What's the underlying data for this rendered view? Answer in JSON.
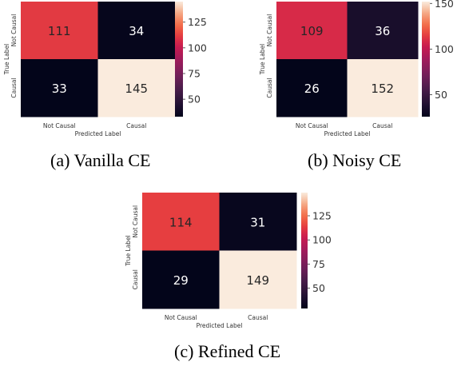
{
  "chart_data": [
    {
      "type": "heatmap",
      "caption": "(a) Vanilla CE",
      "xlabel": "Predicted Label",
      "ylabel": "True Label",
      "categories": [
        "Not Causal",
        "Causal"
      ],
      "values": [
        [
          111,
          34
        ],
        [
          33,
          145
        ]
      ],
      "colorbar": {
        "ticks": [
          50,
          75,
          100,
          125
        ],
        "range": [
          33,
          145
        ]
      }
    },
    {
      "type": "heatmap",
      "caption": "(b) Noisy CE",
      "xlabel": "Predicted Label",
      "ylabel": "True Label",
      "categories": [
        "Not Causal",
        "Causal"
      ],
      "values": [
        [
          109,
          36
        ],
        [
          26,
          152
        ]
      ],
      "colorbar": {
        "ticks": [
          50,
          100,
          150
        ],
        "range": [
          26,
          152
        ]
      }
    },
    {
      "type": "heatmap",
      "caption": "(c) Refined CE",
      "xlabel": "Predicted Label",
      "ylabel": "True Label",
      "categories": [
        "Not Causal",
        "Causal"
      ],
      "values": [
        [
          114,
          31
        ],
        [
          29,
          149
        ]
      ],
      "colorbar": {
        "ticks": [
          50,
          75,
          100,
          125
        ],
        "range": [
          29,
          149
        ]
      }
    }
  ],
  "colormap": "rocket"
}
